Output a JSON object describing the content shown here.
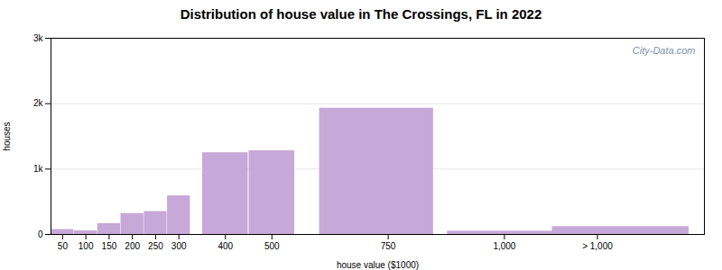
{
  "chart_data": {
    "type": "bar",
    "title": "Distribution of house value in The Crossings, FL in 2022",
    "xlabel": "house value ($1000)",
    "ylabel": "houses",
    "x": [
      50,
      100,
      150,
      200,
      250,
      300,
      400,
      500,
      725,
      1000,
      1250
    ],
    "widths": [
      50,
      50,
      50,
      50,
      50,
      50,
      100,
      100,
      250,
      250,
      300
    ],
    "values": [
      75,
      55,
      165,
      320,
      350,
      590,
      1250,
      1280,
      1930,
      50,
      120
    ],
    "color": "#c8a8d8",
    "xlim": [
      25,
      1430
    ],
    "xticks": [
      50,
      100,
      150,
      200,
      250,
      300,
      400,
      500,
      750,
      {
        "value": 1000,
        "label": "1,000"
      },
      {
        "value": 1200,
        "label": "> 1,000"
      }
    ],
    "ylim": [
      0,
      3000
    ],
    "yticks": [
      0,
      {
        "value": 1000,
        "label": "1k"
      },
      {
        "value": 2000,
        "label": "2k"
      },
      {
        "value": 3000,
        "label": "3k"
      }
    ],
    "grid": true,
    "annotations": [
      {
        "text": "City-Data.com"
      }
    ]
  }
}
